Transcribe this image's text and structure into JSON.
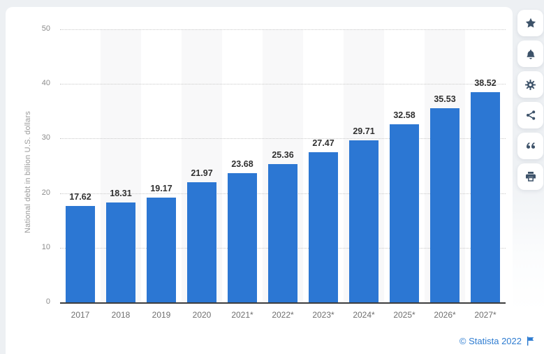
{
  "chart_data": {
    "type": "bar",
    "categories": [
      "2017",
      "2018",
      "2019",
      "2020",
      "2021*",
      "2022*",
      "2023*",
      "2024*",
      "2025*",
      "2026*",
      "2027*"
    ],
    "values": [
      17.62,
      18.31,
      19.17,
      21.97,
      23.68,
      25.36,
      27.47,
      29.71,
      32.58,
      35.53,
      38.52
    ],
    "ylabel": "National debt in billion U.S. dollars",
    "xlabel": "",
    "ylim": [
      0,
      50
    ],
    "yticks": [
      0,
      10,
      20,
      30,
      40,
      50
    ],
    "grid": "horizontal-dotted",
    "legend": "none",
    "bar_color": "#2c77d3",
    "band_color": "#f8f8f9"
  },
  "toolbar": {
    "buttons": [
      {
        "icon": "star"
      },
      {
        "icon": "bell"
      },
      {
        "icon": "gear"
      },
      {
        "icon": "share"
      },
      {
        "icon": "quote"
      },
      {
        "icon": "printer"
      }
    ]
  },
  "footer": {
    "copyright": "© Statista 2022"
  },
  "colors": {
    "accent_blue": "#2c77d3",
    "icon_navy": "#3d5269",
    "page_bg": "#edf0f3"
  }
}
